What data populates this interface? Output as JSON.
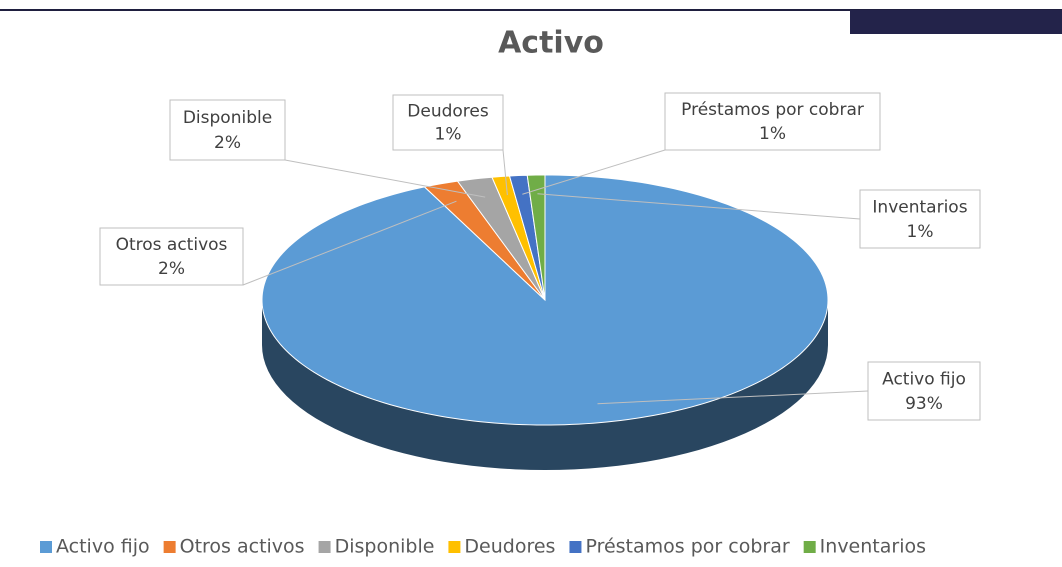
{
  "chart_data": {
    "type": "pie",
    "title": "Activo",
    "categories": [
      "Activo fijo",
      "Otros activos",
      "Disponible",
      "Deudores",
      "Préstamos por cobrar",
      "Inventarios"
    ],
    "values": [
      93,
      2,
      2,
      1,
      1,
      1
    ],
    "value_labels": [
      "93%",
      "2%",
      "2%",
      "1%",
      "1%",
      "1%"
    ],
    "colors": [
      "#5b9bd5",
      "#ed7d31",
      "#a5a5a5",
      "#ffc000",
      "#4472c4",
      "#70ad47"
    ],
    "legend": "bottom"
  }
}
